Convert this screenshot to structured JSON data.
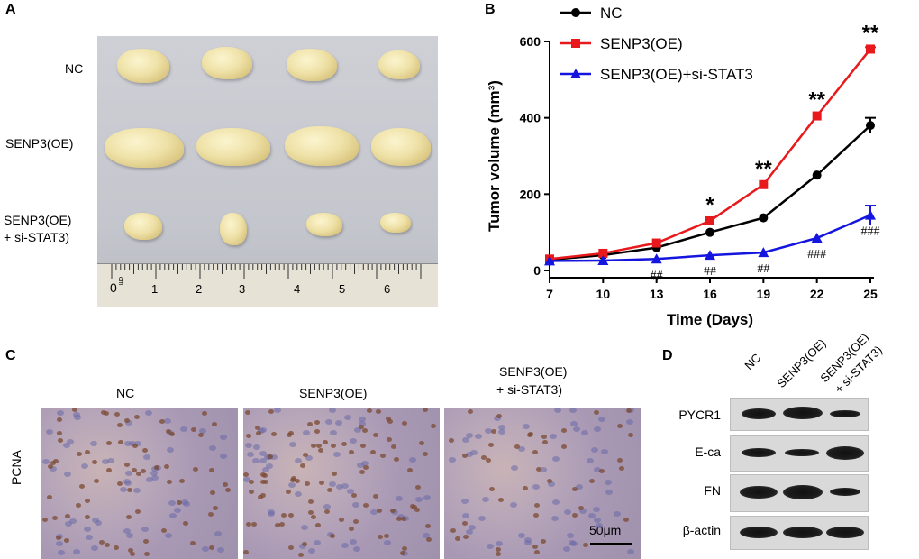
{
  "panels": {
    "a": {
      "letter": "A",
      "row_labels": [
        "NC",
        "SENP3(OE)",
        "SENP3(OE)",
        "+ si-STAT3)"
      ],
      "ruler_numbers": [
        "0",
        "1",
        "2",
        "3",
        "4",
        "5",
        "6"
      ],
      "ruler_unit": "cm"
    },
    "b": {
      "letter": "B"
    },
    "c": {
      "letter": "C",
      "column_labels": [
        "NC",
        "SENP3(OE)",
        "SENP3(OE)",
        "+ si-STAT3)"
      ],
      "row_label": "PCNA",
      "scale_bar": "50μm"
    },
    "d": {
      "letter": "D",
      "column_labels": [
        "NC",
        "SENP3(OE)",
        "SENP3(OE)",
        "+ si-STAT3)"
      ],
      "row_labels": [
        "PYCR1",
        "E-ca",
        "FN",
        "β-actin"
      ]
    }
  },
  "chart_data": {
    "type": "line",
    "x": [
      7,
      10,
      13,
      16,
      19,
      22,
      25
    ],
    "xlabel": "Time (Days)",
    "ylabel": "Tumor volume (mm³)",
    "xlim": [
      7,
      25
    ],
    "ylim": [
      0,
      600
    ],
    "x_ticks": [
      "7",
      "10",
      "13",
      "16",
      "19",
      "22",
      "25"
    ],
    "y_ticks": [
      "0",
      "200",
      "400",
      "600"
    ],
    "legend_position": "top-left",
    "series": [
      {
        "name": "NC",
        "color": "#000000",
        "marker": "circle",
        "values": [
          28,
          40,
          60,
          100,
          138,
          250,
          380
        ],
        "error_last": 20
      },
      {
        "name": "SENP3(OE)",
        "color": "#e8191c",
        "marker": "square",
        "values": [
          30,
          45,
          72,
          130,
          225,
          405,
          580
        ],
        "error_last": 5
      },
      {
        "name": "SENP3(OE)+si-STAT3",
        "color": "#1515e0",
        "marker": "triangle",
        "values": [
          25,
          26,
          30,
          40,
          47,
          85,
          145
        ],
        "error_last": 25
      }
    ],
    "annotations_above": [
      {
        "x": 16,
        "text": "*"
      },
      {
        "x": 19,
        "text": "**"
      },
      {
        "x": 22,
        "text": "**"
      },
      {
        "x": 25,
        "text": "**"
      }
    ],
    "annotations_below": [
      {
        "x": 13,
        "text": "##"
      },
      {
        "x": 16,
        "text": "##"
      },
      {
        "x": 19,
        "text": "##"
      },
      {
        "x": 22,
        "text": "###"
      },
      {
        "x": 25,
        "text": "###"
      }
    ]
  }
}
